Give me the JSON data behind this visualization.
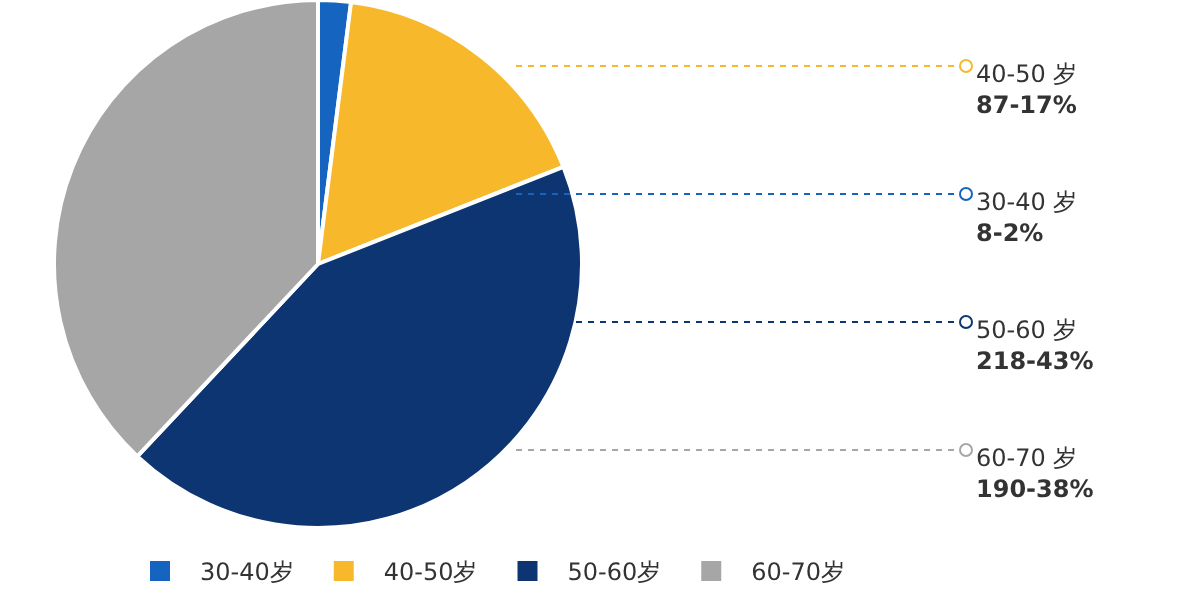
{
  "chart_data": {
    "type": "pie",
    "categories": [
      "30-40岁",
      "40-50岁",
      "50-60岁",
      "60-70岁"
    ],
    "values": [
      2,
      17,
      43,
      38
    ],
    "colors": [
      "#1565c0",
      "#f7b82b",
      "#0d3572",
      "#a6a6a6"
    ],
    "annotations": [
      "40-50 岁\n87-17%",
      "30-40 岁\n8-2%",
      "50-60 岁\n218-43%",
      "60-70 岁\n190-38%"
    ],
    "legend": "bottom"
  }
}
